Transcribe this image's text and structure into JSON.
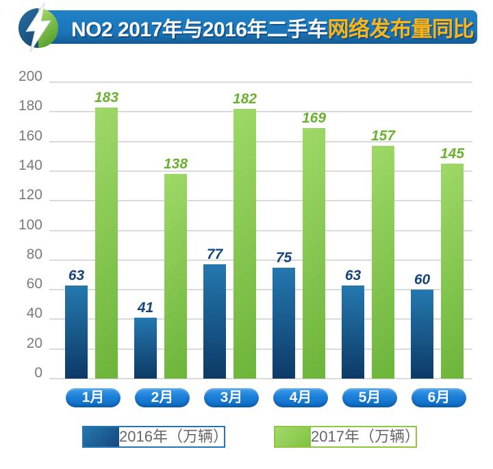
{
  "header": {
    "badge_icon": "lightning-bolt-icon",
    "title_plain": "NO2 2017年与2016年二手车",
    "title_highlight": "网络发布量同比",
    "colors": {
      "banner": "#1b74b8",
      "highlight": "#fdb515"
    }
  },
  "chart_data": {
    "type": "bar",
    "title": "NO2 2017年与2016年二手车网络发布量同比",
    "categories": [
      "1月",
      "2月",
      "3月",
      "4月",
      "5月",
      "6月"
    ],
    "series": [
      {
        "name": "2016年（万辆）",
        "values": [
          63,
          41,
          77,
          75,
          63,
          60
        ]
      },
      {
        "name": "2017年（万辆）",
        "values": [
          183,
          138,
          182,
          169,
          157,
          145
        ]
      }
    ],
    "ylim": [
      0,
      200
    ],
    "yticks": [
      0,
      20,
      40,
      60,
      80,
      100,
      120,
      140,
      160,
      180,
      200
    ],
    "grid": true,
    "legend_position": "bottom",
    "xlabel": "",
    "ylabel": "",
    "colors": {
      "series_2016_top": "#2478af",
      "series_2016_bottom": "#0d3a66",
      "series_2017_light": "#9fd968",
      "series_2017_dark": "#6cb43a",
      "label_2016": "#16457e",
      "label_2017": "#68b22d",
      "axis_text": "#7a7a7a",
      "gridline": "#d9d9d9",
      "category_pill": "#1b7fd8",
      "legend_swatch_2016": "#17477c",
      "legend_border_2016": "#2474b5",
      "legend_swatch_2017_light": "#a6d96e",
      "legend_swatch_2017_dark": "#7fc23e",
      "legend_border_2017": "#8dc63f",
      "legend_text": "#666666"
    }
  }
}
